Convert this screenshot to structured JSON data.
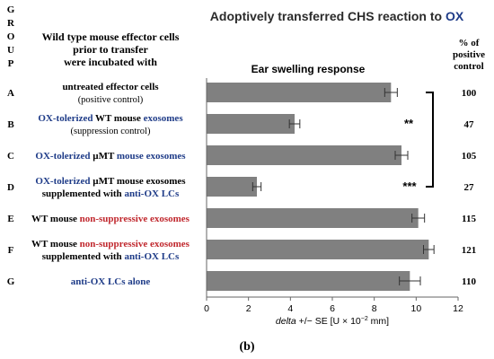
{
  "header": {
    "group_letters": [
      "G",
      "R",
      "O",
      "U",
      "P"
    ],
    "title_prefix": "Adoptively transferred  CHS reaction to ",
    "title_accent": "OX",
    "col_left_lines": [
      "Wild type mouse effector cells",
      "prior to transfer",
      "were incubated with"
    ],
    "col_mid": "Ear swelling response",
    "col_right_lines": [
      "% of",
      "positive",
      "control"
    ]
  },
  "rows": [
    {
      "letter": "A",
      "lines": [
        [
          {
            "t": "untreated effector cells",
            "c": "black"
          }
        ],
        [
          {
            "t": "(positive  control)",
            "c": "black",
            "small": true
          }
        ]
      ],
      "percent": "100"
    },
    {
      "letter": "B",
      "lines": [
        [
          {
            "t": "OX-tolerized ",
            "c": "blue"
          },
          {
            "t": "WT mouse ",
            "c": "black"
          },
          {
            "t": "exosomes",
            "c": "blue"
          }
        ],
        [
          {
            "t": "(suppression  control)",
            "c": "black",
            "small": true
          }
        ]
      ],
      "percent": "47"
    },
    {
      "letter": "C",
      "lines": [
        [
          {
            "t": "OX-tolerized ",
            "c": "blue"
          },
          {
            "t": "µMT ",
            "c": "black"
          },
          {
            "t": "mouse exosomes",
            "c": "blue"
          }
        ]
      ],
      "percent": "105"
    },
    {
      "letter": "D",
      "lines": [
        [
          {
            "t": "OX-tolerized ",
            "c": "blue"
          },
          {
            "t": "µMT ",
            "c": "black"
          },
          {
            "t": "mouse exosomes",
            "c": "black"
          }
        ],
        [
          {
            "t": "supplemented with ",
            "c": "black"
          },
          {
            "t": "anti-OX LCs",
            "c": "blue"
          }
        ]
      ],
      "percent": "27"
    },
    {
      "letter": "E",
      "lines": [
        [
          {
            "t": "WT mouse ",
            "c": "black"
          },
          {
            "t": "non-suppressive exosomes",
            "c": "red"
          }
        ]
      ],
      "percent": "115"
    },
    {
      "letter": "F",
      "lines": [
        [
          {
            "t": "WT mouse ",
            "c": "black"
          },
          {
            "t": "non-suppressive exosomes",
            "c": "red"
          }
        ],
        [
          {
            "t": "supplemented with ",
            "c": "black"
          },
          {
            "t": "anti-OX LCs",
            "c": "blue"
          }
        ]
      ],
      "percent": "121"
    },
    {
      "letter": "G",
      "lines": [
        [
          {
            "t": "anti-OX LCs alone",
            "c": "blue"
          }
        ]
      ],
      "percent": "110"
    }
  ],
  "significance": {
    "group_B": "**",
    "group_D": "***"
  },
  "chart_data": {
    "type": "bar",
    "orientation": "horizontal",
    "categories": [
      "A",
      "B",
      "C",
      "D",
      "E",
      "F",
      "G"
    ],
    "values": [
      8.8,
      4.2,
      9.3,
      2.4,
      10.1,
      10.6,
      9.7
    ],
    "errors": [
      0.3,
      0.25,
      0.3,
      0.2,
      0.3,
      0.25,
      0.5
    ],
    "xlim": [
      0,
      12
    ],
    "xticks": [
      0,
      2,
      4,
      6,
      8,
      10,
      12
    ],
    "xlabel_italic": "delta",
    "xlabel_rest": " +/− SE [U × 10",
    "xlabel_sup": "−2",
    "xlabel_end": " mm]",
    "bar_color": "#808080",
    "grid": false
  },
  "colors": {
    "blue": "#1f3c88",
    "red": "#c0272d",
    "black": "#000000",
    "title": "#2b2b2b"
  },
  "panel_label": "(b)"
}
